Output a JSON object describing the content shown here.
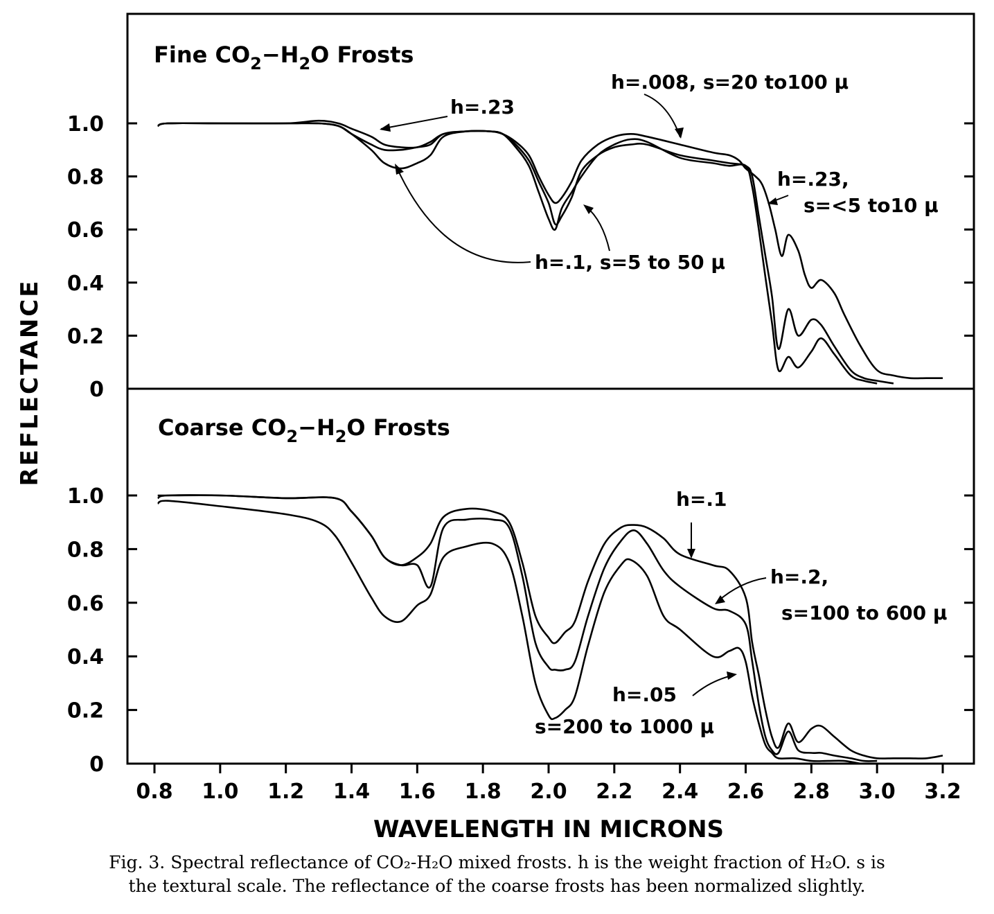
{
  "chart_data": [
    {
      "type": "line",
      "title": "Fine CO2−H2O Frosts",
      "title_parts": {
        "a": "Fine CO",
        "b": "2",
        "c": "−H",
        "d": "2",
        "e": "O Frosts"
      },
      "xlabel": "WAVELENGTH IN MICRONS",
      "ylabel": "REFLECTANCE",
      "xlim": [
        0.8,
        3.2
      ],
      "ylim": [
        0,
        1.0
      ],
      "x_ticks": [
        "0.8",
        "1.0",
        "1.2",
        "1.4",
        "1.6",
        "1.8",
        "2.0",
        "2.2",
        "2.4",
        "2.6",
        "2.8",
        "3.0",
        "3.2"
      ],
      "y_ticks": [
        "0",
        "0.2",
        "0.4",
        "0.6",
        "0.8",
        "1.0"
      ],
      "annotations": [
        "h=.23",
        "h=.008, s=20 to100 μ",
        "h=.23,",
        "s=<5 to10 μ",
        "h=.1, s=5 to 50 μ"
      ],
      "series": [
        {
          "x": [
            0.81,
            0.84,
            1.0,
            1.2,
            1.3,
            1.36,
            1.4,
            1.46,
            1.5,
            1.55,
            1.6,
            1.64,
            1.68,
            1.75,
            1.82,
            1.86,
            1.9,
            1.94,
            1.97,
            2.0,
            2.02,
            2.04,
            2.07,
            2.1,
            2.15,
            2.2,
            2.25,
            2.3,
            2.4,
            2.5,
            2.55,
            2.58,
            2.6,
            2.63,
            2.65,
            2.67,
            2.69,
            2.71,
            2.73,
            2.76,
            2.78,
            2.8,
            2.83,
            2.87,
            2.9,
            2.95,
            3.0,
            3.05,
            3.1,
            3.15,
            3.2
          ],
          "y": [
            0.99,
            1.0,
            1.0,
            1.0,
            1.01,
            1.0,
            0.98,
            0.95,
            0.92,
            0.91,
            0.91,
            0.93,
            0.96,
            0.97,
            0.97,
            0.96,
            0.93,
            0.88,
            0.8,
            0.73,
            0.7,
            0.72,
            0.78,
            0.86,
            0.92,
            0.95,
            0.96,
            0.95,
            0.92,
            0.89,
            0.88,
            0.86,
            0.83,
            0.8,
            0.77,
            0.7,
            0.6,
            0.5,
            0.58,
            0.52,
            0.43,
            0.38,
            0.41,
            0.36,
            0.28,
            0.16,
            0.07,
            0.05,
            0.04,
            0.04,
            0.04
          ]
        },
        {
          "x": [
            0.81,
            0.84,
            1.0,
            1.2,
            1.3,
            1.36,
            1.4,
            1.46,
            1.5,
            1.55,
            1.6,
            1.64,
            1.68,
            1.75,
            1.82,
            1.86,
            1.9,
            1.94,
            1.97,
            2.0,
            2.02,
            2.04,
            2.07,
            2.1,
            2.15,
            2.2,
            2.25,
            2.3,
            2.4,
            2.5,
            2.55,
            2.6,
            2.62,
            2.64,
            2.66,
            2.68,
            2.7,
            2.73,
            2.76,
            2.8,
            2.83,
            2.87,
            2.92,
            2.96,
            3.0,
            3.05
          ],
          "y": [
            0.99,
            1.0,
            1.0,
            1.0,
            1.0,
            0.99,
            0.96,
            0.92,
            0.9,
            0.9,
            0.91,
            0.92,
            0.96,
            0.97,
            0.97,
            0.96,
            0.92,
            0.86,
            0.78,
            0.7,
            0.62,
            0.65,
            0.72,
            0.82,
            0.88,
            0.91,
            0.92,
            0.92,
            0.88,
            0.86,
            0.85,
            0.84,
            0.8,
            0.65,
            0.5,
            0.35,
            0.15,
            0.3,
            0.2,
            0.26,
            0.24,
            0.16,
            0.07,
            0.04,
            0.03,
            0.02
          ]
        },
        {
          "x": [
            0.81,
            0.84,
            1.0,
            1.2,
            1.3,
            1.36,
            1.4,
            1.46,
            1.5,
            1.55,
            1.6,
            1.64,
            1.68,
            1.75,
            1.82,
            1.86,
            1.9,
            1.94,
            1.97,
            2.0,
            2.02,
            2.04,
            2.07,
            2.1,
            2.15,
            2.2,
            2.25,
            2.3,
            2.4,
            2.5,
            2.55,
            2.6,
            2.62,
            2.64,
            2.66,
            2.68,
            2.7,
            2.73,
            2.76,
            2.8,
            2.83,
            2.87,
            2.92,
            2.96,
            3.0
          ],
          "y": [
            0.99,
            1.0,
            1.0,
            1.0,
            1.0,
            0.99,
            0.96,
            0.9,
            0.85,
            0.83,
            0.85,
            0.88,
            0.95,
            0.97,
            0.97,
            0.96,
            0.91,
            0.84,
            0.74,
            0.64,
            0.6,
            0.68,
            0.74,
            0.8,
            0.88,
            0.92,
            0.94,
            0.93,
            0.87,
            0.85,
            0.84,
            0.84,
            0.76,
            0.6,
            0.42,
            0.25,
            0.07,
            0.12,
            0.08,
            0.14,
            0.19,
            0.13,
            0.05,
            0.03,
            0.02
          ]
        }
      ]
    },
    {
      "type": "line",
      "title": "Coarse CO2−H2O Frosts",
      "title_parts": {
        "a": "Coarse CO",
        "b": "2",
        "c": "−H",
        "d": "2",
        "e": "O Frosts"
      },
      "xlabel": "WAVELENGTH IN MICRONS",
      "ylabel": "REFLECTANCE",
      "xlim": [
        0.8,
        3.2
      ],
      "ylim": [
        0,
        1.0
      ],
      "x_ticks": [
        "0.8",
        "1.0",
        "1.2",
        "1.4",
        "1.6",
        "1.8",
        "2.0",
        "2.2",
        "2.4",
        "2.6",
        "2.8",
        "3.0",
        "3.2"
      ],
      "y_ticks": [
        "0",
        "0.2",
        "0.4",
        "0.6",
        "0.8",
        "1.0"
      ],
      "annotations": [
        "h=.1",
        "h=.2,",
        "s=100 to 600 μ",
        "h=.05",
        "s=200 to 1000 μ"
      ],
      "series": [
        {
          "x": [
            0.81,
            0.84,
            1.0,
            1.2,
            1.35,
            1.4,
            1.46,
            1.5,
            1.55,
            1.6,
            1.64,
            1.68,
            1.75,
            1.83,
            1.88,
            1.92,
            1.96,
            2.0,
            2.02,
            2.05,
            2.08,
            2.12,
            2.17,
            2.22,
            2.26,
            2.3,
            2.35,
            2.4,
            2.5,
            2.55,
            2.6,
            2.62,
            2.64,
            2.66,
            2.68,
            2.7,
            2.73,
            2.76,
            2.8,
            2.83,
            2.87,
            2.92,
            2.96,
            3.0,
            3.05,
            3.1,
            3.15,
            3.2
          ],
          "y": [
            1.0,
            1.0,
            1.0,
            0.99,
            0.99,
            0.94,
            0.85,
            0.77,
            0.74,
            0.77,
            0.82,
            0.92,
            0.95,
            0.94,
            0.9,
            0.75,
            0.55,
            0.47,
            0.45,
            0.49,
            0.53,
            0.68,
            0.82,
            0.88,
            0.89,
            0.88,
            0.84,
            0.78,
            0.74,
            0.72,
            0.62,
            0.45,
            0.33,
            0.2,
            0.1,
            0.06,
            0.15,
            0.08,
            0.13,
            0.14,
            0.1,
            0.05,
            0.03,
            0.02,
            0.02,
            0.02,
            0.02,
            0.03
          ]
        },
        {
          "x": [
            0.81,
            0.84,
            1.0,
            1.2,
            1.35,
            1.4,
            1.46,
            1.5,
            1.55,
            1.6,
            1.64,
            1.68,
            1.75,
            1.83,
            1.88,
            1.92,
            1.96,
            2.0,
            2.02,
            2.05,
            2.08,
            2.12,
            2.17,
            2.22,
            2.26,
            2.3,
            2.35,
            2.4,
            2.5,
            2.55,
            2.6,
            2.62,
            2.64,
            2.66,
            2.68,
            2.7,
            2.73,
            2.76,
            2.8,
            2.83,
            2.87,
            2.92,
            2.96,
            3.0
          ],
          "y": [
            0.99,
            1.0,
            1.0,
            0.99,
            0.99,
            0.94,
            0.85,
            0.77,
            0.74,
            0.74,
            0.66,
            0.88,
            0.91,
            0.91,
            0.88,
            0.7,
            0.45,
            0.36,
            0.35,
            0.35,
            0.38,
            0.55,
            0.73,
            0.83,
            0.87,
            0.82,
            0.72,
            0.66,
            0.58,
            0.57,
            0.52,
            0.38,
            0.22,
            0.1,
            0.05,
            0.04,
            0.12,
            0.05,
            0.04,
            0.04,
            0.03,
            0.02,
            0.01,
            0.01
          ]
        },
        {
          "x": [
            0.81,
            0.84,
            1.0,
            1.2,
            1.3,
            1.35,
            1.4,
            1.46,
            1.5,
            1.55,
            1.6,
            1.64,
            1.68,
            1.75,
            1.83,
            1.88,
            1.92,
            1.96,
            2.0,
            2.02,
            2.05,
            2.08,
            2.12,
            2.17,
            2.22,
            2.25,
            2.3,
            2.35,
            2.4,
            2.5,
            2.55,
            2.58,
            2.6,
            2.62,
            2.64,
            2.66,
            2.68,
            2.7,
            2.75,
            2.8,
            2.85,
            2.9,
            2.95
          ],
          "y": [
            0.97,
            0.98,
            0.96,
            0.93,
            0.9,
            0.85,
            0.75,
            0.62,
            0.55,
            0.53,
            0.59,
            0.63,
            0.77,
            0.81,
            0.82,
            0.75,
            0.55,
            0.3,
            0.18,
            0.17,
            0.2,
            0.25,
            0.44,
            0.64,
            0.74,
            0.76,
            0.7,
            0.55,
            0.5,
            0.4,
            0.42,
            0.43,
            0.38,
            0.25,
            0.15,
            0.07,
            0.04,
            0.02,
            0.02,
            0.01,
            0.01,
            0.01,
            0.0
          ]
        }
      ]
    }
  ],
  "caption": {
    "line1": "Fig. 3.  Spectral reflectance of CO₂-H₂O mixed frosts. h is the weight fraction of H₂O. s is",
    "line2": "the textural scale. The reflectance of the coarse frosts has been normalized slightly."
  }
}
